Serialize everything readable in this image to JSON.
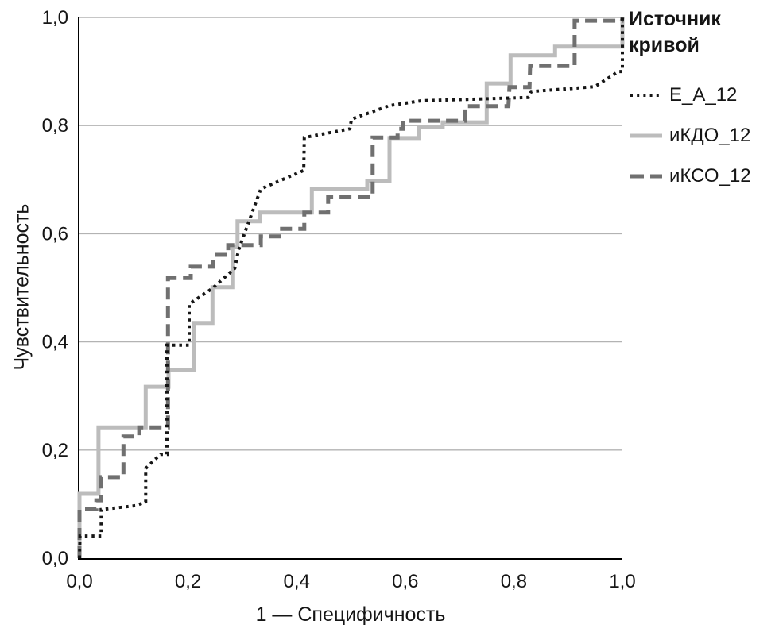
{
  "figure": {
    "background": "#ffffff",
    "text_color": "#151515",
    "grid_color": "#b3b3b3",
    "axis_color": "#000000"
  },
  "chart_data": {
    "type": "line",
    "subtype": "roc-step-curves",
    "title": "",
    "xlabel": "1 — Специфичность",
    "ylabel": "Чувствительность",
    "legend_title": "Источник кривой",
    "xlim": [
      0.0,
      1.0
    ],
    "ylim": [
      0.0,
      1.0
    ],
    "xticks": [
      0.0,
      0.2,
      0.4,
      0.6,
      0.8,
      1.0
    ],
    "yticks": [
      0.0,
      0.2,
      0.4,
      0.6,
      0.8,
      1.0
    ],
    "tick_format": "comma-decimal",
    "grid": "horizontal-only",
    "legend_position": "top-right-outside",
    "series": [
      {
        "label": "E_A_12",
        "color": "#161616",
        "style": "dotted",
        "points": [
          [
            0,
            0
          ],
          [
            0.001,
            0.041
          ],
          [
            0.04,
            0.041
          ],
          [
            0.04,
            0.09
          ],
          [
            0.103,
            0.097
          ],
          [
            0.122,
            0.104
          ],
          [
            0.122,
            0.166
          ],
          [
            0.149,
            0.192
          ],
          [
            0.161,
            0.192
          ],
          [
            0.161,
            0.394
          ],
          [
            0.202,
            0.394
          ],
          [
            0.202,
            0.47
          ],
          [
            0.245,
            0.499
          ],
          [
            0.286,
            0.536
          ],
          [
            0.293,
            0.57
          ],
          [
            0.334,
            0.683
          ],
          [
            0.413,
            0.717
          ],
          [
            0.414,
            0.778
          ],
          [
            0.498,
            0.794
          ],
          [
            0.501,
            0.812
          ],
          [
            0.571,
            0.837
          ],
          [
            0.63,
            0.846
          ],
          [
            0.827,
            0.852
          ],
          [
            0.832,
            0.863
          ],
          [
            0.949,
            0.872
          ],
          [
            0.993,
            0.9
          ],
          [
            1,
            0.9
          ],
          [
            1,
            1
          ]
        ]
      },
      {
        "label": "иКДО_12",
        "color": "#bcbcbc",
        "style": "solid",
        "points": [
          [
            0,
            0
          ],
          [
            0,
            0.119
          ],
          [
            0.035,
            0.119
          ],
          [
            0.035,
            0.242
          ],
          [
            0.122,
            0.242
          ],
          [
            0.122,
            0.317
          ],
          [
            0.164,
            0.317
          ],
          [
            0.164,
            0.348
          ],
          [
            0.211,
            0.348
          ],
          [
            0.211,
            0.435
          ],
          [
            0.245,
            0.435
          ],
          [
            0.245,
            0.501
          ],
          [
            0.283,
            0.501
          ],
          [
            0.283,
            0.576
          ],
          [
            0.291,
            0.576
          ],
          [
            0.291,
            0.623
          ],
          [
            0.332,
            0.623
          ],
          [
            0.332,
            0.639
          ],
          [
            0.428,
            0.639
          ],
          [
            0.428,
            0.683
          ],
          [
            0.53,
            0.683
          ],
          [
            0.53,
            0.697
          ],
          [
            0.571,
            0.697
          ],
          [
            0.571,
            0.777
          ],
          [
            0.625,
            0.777
          ],
          [
            0.625,
            0.797
          ],
          [
            0.669,
            0.797
          ],
          [
            0.669,
            0.806
          ],
          [
            0.75,
            0.806
          ],
          [
            0.75,
            0.878
          ],
          [
            0.794,
            0.878
          ],
          [
            0.794,
            0.93
          ],
          [
            0.876,
            0.93
          ],
          [
            0.876,
            0.946
          ],
          [
            1,
            0.946
          ],
          [
            1,
            1
          ]
        ]
      },
      {
        "label": "иКСО_12",
        "color": "#707070",
        "style": "dashed",
        "points": [
          [
            0,
            0
          ],
          [
            0,
            0.091
          ],
          [
            0.031,
            0.091
          ],
          [
            0.031,
            0.107
          ],
          [
            0.04,
            0.107
          ],
          [
            0.04,
            0.15
          ],
          [
            0.081,
            0.15
          ],
          [
            0.081,
            0.225
          ],
          [
            0.11,
            0.225
          ],
          [
            0.11,
            0.242
          ],
          [
            0.163,
            0.242
          ],
          [
            0.163,
            0.518
          ],
          [
            0.205,
            0.518
          ],
          [
            0.205,
            0.539
          ],
          [
            0.246,
            0.539
          ],
          [
            0.246,
            0.561
          ],
          [
            0.274,
            0.561
          ],
          [
            0.274,
            0.579
          ],
          [
            0.334,
            0.579
          ],
          [
            0.334,
            0.595
          ],
          [
            0.373,
            0.595
          ],
          [
            0.373,
            0.609
          ],
          [
            0.414,
            0.609
          ],
          [
            0.414,
            0.639
          ],
          [
            0.458,
            0.639
          ],
          [
            0.458,
            0.668
          ],
          [
            0.54,
            0.668
          ],
          [
            0.54,
            0.778
          ],
          [
            0.586,
            0.778
          ],
          [
            0.586,
            0.794
          ],
          [
            0.596,
            0.794
          ],
          [
            0.596,
            0.809
          ],
          [
            0.71,
            0.809
          ],
          [
            0.71,
            0.836
          ],
          [
            0.79,
            0.836
          ],
          [
            0.792,
            0.871
          ],
          [
            0.829,
            0.871
          ],
          [
            0.83,
            0.91
          ],
          [
            0.912,
            0.91
          ],
          [
            0.912,
            0.994
          ],
          [
            0.999,
            0.994
          ],
          [
            1,
            1
          ]
        ]
      }
    ]
  }
}
